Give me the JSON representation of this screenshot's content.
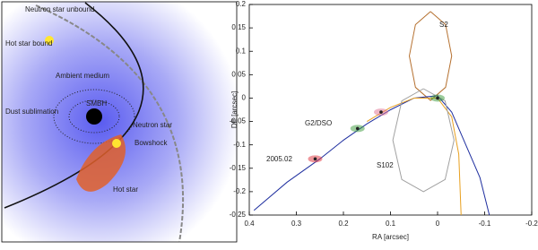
{
  "diagram": {
    "labels": [
      "Neutron star unbound",
      "Hot star bound",
      "Ambient medium",
      "Dust sublimation",
      "SMBH",
      "Neutron star",
      "Bowshock",
      "Hot star"
    ]
  },
  "chart_data": {
    "type": "line",
    "x_label": "RA [arcsec]",
    "y_label": "DE [arcsec]",
    "xlim": [
      0.4,
      -0.2
    ],
    "xticks": [
      0.4,
      0.3,
      0.2,
      0.1,
      0,
      -0.1,
      -0.2
    ],
    "ylim": [
      -0.25,
      0.2
    ],
    "yticks": [
      -0.25,
      -0.2,
      -0.15,
      -0.1,
      -0.05,
      0,
      0.05,
      0.1,
      0.15,
      0.2
    ],
    "annotations": [
      "S2",
      "G2/DSO",
      "2005.02",
      "S102"
    ],
    "series": [
      {
        "color": "#b5702f",
        "x": [
          0.015,
          0.047,
          0.06,
          0.047,
          0.015,
          -0.017,
          -0.03,
          -0.017,
          0.015
        ],
        "y": [
          0.185,
          0.157,
          0.09,
          0.023,
          -0.005,
          0.023,
          0.09,
          0.157,
          0.185
        ]
      },
      {
        "color": "#1f2f9f",
        "x": [
          0.39,
          0.32,
          0.25,
          0.2,
          0.15,
          0.1,
          0.05,
          0.0,
          -0.03,
          -0.06,
          -0.09,
          -0.11
        ],
        "y": [
          -0.24,
          -0.18,
          -0.13,
          -0.09,
          -0.055,
          -0.025,
          0.0,
          0.005,
          -0.03,
          -0.1,
          -0.17,
          -0.25
        ]
      },
      {
        "color": "#e8a020",
        "x": [
          0.15,
          0.1,
          0.05,
          0.0,
          -0.03,
          -0.045,
          -0.05
        ],
        "y": [
          -0.05,
          -0.02,
          0.0,
          0.0,
          -0.04,
          -0.12,
          -0.25
        ]
      },
      {
        "color": "#a0a0a0",
        "x": [
          0.03,
          0.076,
          0.095,
          0.076,
          0.03,
          -0.016,
          -0.035,
          -0.016,
          0.03
        ],
        "y": [
          0.02,
          -0.006,
          -0.09,
          -0.174,
          -0.2,
          -0.174,
          -0.09,
          -0.006,
          0.02
        ]
      }
    ],
    "clouds": [
      {
        "color": "#e0303a",
        "x": 0.26,
        "y": -0.13
      },
      {
        "color": "#3a9a3a",
        "x": 0.17,
        "y": -0.065
      },
      {
        "color": "#e07090",
        "x": 0.12,
        "y": -0.03
      },
      {
        "color": "#3a9a3a",
        "x": 0.0,
        "y": 0.0
      }
    ]
  }
}
